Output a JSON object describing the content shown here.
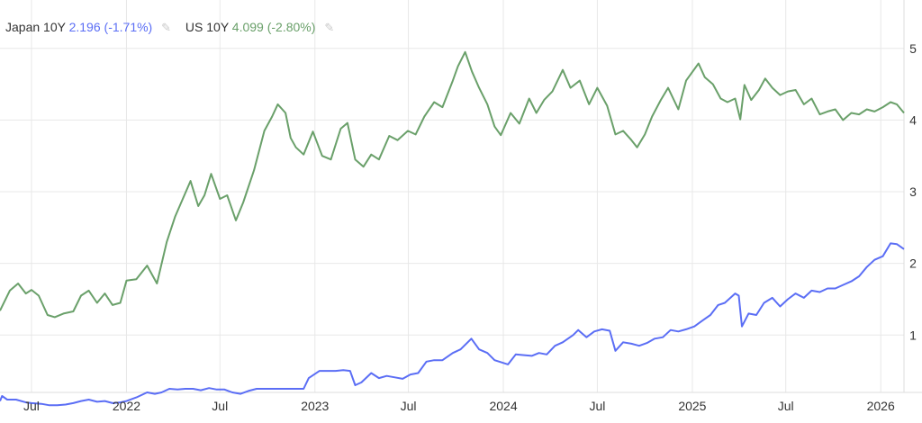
{
  "legend": {
    "items": [
      {
        "name": "Japan 10Y",
        "value": "2.196",
        "change": "(-1.71%)",
        "color": "#5b6ef5"
      },
      {
        "name": "US 10Y",
        "value": "4.099",
        "change": "(-2.80%)",
        "color": "#6aa06a"
      }
    ],
    "edit_icon": "pencil-icon"
  },
  "chart_data": {
    "type": "line",
    "xlabel": "",
    "ylabel": "",
    "ylim": [
      0.2,
      5.5
    ],
    "xlim": [
      "2021-05-01",
      "2026-02-15"
    ],
    "grid": true,
    "legend_position": "top-left",
    "y_ticks": [
      1,
      2,
      3,
      4,
      5
    ],
    "x_ticks": [
      {
        "label": "Jul",
        "x": "2021-07-01"
      },
      {
        "label": "2022",
        "x": "2022-01-01"
      },
      {
        "label": "Jul",
        "x": "2022-07-01"
      },
      {
        "label": "2023",
        "x": "2023-01-01"
      },
      {
        "label": "Jul",
        "x": "2023-07-01"
      },
      {
        "label": "2024",
        "x": "2024-01-01"
      },
      {
        "label": "Jul",
        "x": "2024-07-01"
      },
      {
        "label": "2025",
        "x": "2025-01-01"
      },
      {
        "label": "Jul",
        "x": "2025-07-01"
      },
      {
        "label": "2026",
        "x": "2026-01-01"
      }
    ],
    "series": [
      {
        "name": "US 10Y",
        "color": "#6aa06a",
        "points": [
          [
            "2021-05-01",
            1.34
          ],
          [
            "2021-05-20",
            1.62
          ],
          [
            "2021-06-05",
            1.72
          ],
          [
            "2021-06-20",
            1.58
          ],
          [
            "2021-07-01",
            1.63
          ],
          [
            "2021-07-15",
            1.55
          ],
          [
            "2021-08-01",
            1.28
          ],
          [
            "2021-08-15",
            1.25
          ],
          [
            "2021-09-01",
            1.3
          ],
          [
            "2021-09-20",
            1.33
          ],
          [
            "2021-10-05",
            1.55
          ],
          [
            "2021-10-20",
            1.62
          ],
          [
            "2021-11-05",
            1.45
          ],
          [
            "2021-11-20",
            1.58
          ],
          [
            "2021-12-05",
            1.42
          ],
          [
            "2021-12-20",
            1.45
          ],
          [
            "2022-01-01",
            1.76
          ],
          [
            "2022-01-20",
            1.78
          ],
          [
            "2022-02-10",
            1.97
          ],
          [
            "2022-03-01",
            1.72
          ],
          [
            "2022-03-20",
            2.3
          ],
          [
            "2022-04-05",
            2.65
          ],
          [
            "2022-04-20",
            2.9
          ],
          [
            "2022-05-05",
            3.15
          ],
          [
            "2022-05-20",
            2.8
          ],
          [
            "2022-06-01",
            2.95
          ],
          [
            "2022-06-14",
            3.25
          ],
          [
            "2022-07-01",
            2.9
          ],
          [
            "2022-07-15",
            2.95
          ],
          [
            "2022-08-01",
            2.6
          ],
          [
            "2022-08-15",
            2.85
          ],
          [
            "2022-09-05",
            3.3
          ],
          [
            "2022-09-25",
            3.85
          ],
          [
            "2022-10-10",
            4.05
          ],
          [
            "2022-10-21",
            4.22
          ],
          [
            "2022-11-05",
            4.1
          ],
          [
            "2022-11-15",
            3.75
          ],
          [
            "2022-11-25",
            3.62
          ],
          [
            "2022-12-10",
            3.52
          ],
          [
            "2022-12-28",
            3.84
          ],
          [
            "2023-01-15",
            3.5
          ],
          [
            "2023-02-01",
            3.45
          ],
          [
            "2023-02-20",
            3.88
          ],
          [
            "2023-03-05",
            3.96
          ],
          [
            "2023-03-20",
            3.45
          ],
          [
            "2023-04-05",
            3.35
          ],
          [
            "2023-04-20",
            3.52
          ],
          [
            "2023-05-05",
            3.45
          ],
          [
            "2023-05-25",
            3.78
          ],
          [
            "2023-06-10",
            3.72
          ],
          [
            "2023-06-30",
            3.85
          ],
          [
            "2023-07-15",
            3.8
          ],
          [
            "2023-08-01",
            4.05
          ],
          [
            "2023-08-20",
            4.25
          ],
          [
            "2023-09-05",
            4.18
          ],
          [
            "2023-09-25",
            4.55
          ],
          [
            "2023-10-05",
            4.75
          ],
          [
            "2023-10-19",
            4.95
          ],
          [
            "2023-11-01",
            4.68
          ],
          [
            "2023-11-15",
            4.45
          ],
          [
            "2023-12-01",
            4.22
          ],
          [
            "2023-12-15",
            3.91
          ],
          [
            "2023-12-27",
            3.79
          ],
          [
            "2024-01-15",
            4.1
          ],
          [
            "2024-02-01",
            3.95
          ],
          [
            "2024-02-20",
            4.3
          ],
          [
            "2024-03-05",
            4.1
          ],
          [
            "2024-03-20",
            4.28
          ],
          [
            "2024-04-05",
            4.4
          ],
          [
            "2024-04-25",
            4.7
          ],
          [
            "2024-05-10",
            4.45
          ],
          [
            "2024-05-28",
            4.55
          ],
          [
            "2024-06-15",
            4.22
          ],
          [
            "2024-07-01",
            4.45
          ],
          [
            "2024-07-20",
            4.2
          ],
          [
            "2024-08-05",
            3.8
          ],
          [
            "2024-08-20",
            3.85
          ],
          [
            "2024-09-05",
            3.72
          ],
          [
            "2024-09-16",
            3.62
          ],
          [
            "2024-10-01",
            3.8
          ],
          [
            "2024-10-15",
            4.05
          ],
          [
            "2024-11-01",
            4.28
          ],
          [
            "2024-11-15",
            4.45
          ],
          [
            "2024-12-05",
            4.15
          ],
          [
            "2024-12-20",
            4.55
          ],
          [
            "2025-01-13",
            4.79
          ],
          [
            "2025-01-25",
            4.6
          ],
          [
            "2025-02-10",
            4.5
          ],
          [
            "2025-02-25",
            4.3
          ],
          [
            "2025-03-10",
            4.25
          ],
          [
            "2025-03-25",
            4.3
          ],
          [
            "2025-04-04",
            4.01
          ],
          [
            "2025-04-12",
            4.49
          ],
          [
            "2025-04-25",
            4.28
          ],
          [
            "2025-05-10",
            4.42
          ],
          [
            "2025-05-22",
            4.58
          ],
          [
            "2025-06-05",
            4.45
          ],
          [
            "2025-06-20",
            4.35
          ],
          [
            "2025-07-05",
            4.4
          ],
          [
            "2025-07-20",
            4.42
          ],
          [
            "2025-08-05",
            4.22
          ],
          [
            "2025-08-20",
            4.3
          ],
          [
            "2025-09-05",
            4.08
          ],
          [
            "2025-09-20",
            4.12
          ],
          [
            "2025-10-05",
            4.15
          ],
          [
            "2025-10-20",
            4.0
          ],
          [
            "2025-11-05",
            4.1
          ],
          [
            "2025-11-20",
            4.08
          ],
          [
            "2025-12-05",
            4.15
          ],
          [
            "2025-12-20",
            4.12
          ],
          [
            "2026-01-05",
            4.18
          ],
          [
            "2026-01-20",
            4.25
          ],
          [
            "2026-02-01",
            4.22
          ],
          [
            "2026-02-15",
            4.1
          ]
        ]
      },
      {
        "name": "Japan 10Y",
        "color": "#5b6ef5",
        "points": [
          [
            "2021-05-01",
            0.08
          ],
          [
            "2021-05-05",
            0.15
          ],
          [
            "2021-05-15",
            0.1
          ],
          [
            "2021-06-01",
            0.1
          ],
          [
            "2021-06-20",
            0.06
          ],
          [
            "2021-07-01",
            0.05
          ],
          [
            "2021-07-20",
            0.04
          ],
          [
            "2021-08-05",
            0.02
          ],
          [
            "2021-08-20",
            0.02
          ],
          [
            "2021-09-05",
            0.03
          ],
          [
            "2021-09-20",
            0.05
          ],
          [
            "2021-10-05",
            0.08
          ],
          [
            "2021-10-20",
            0.1
          ],
          [
            "2021-11-05",
            0.07
          ],
          [
            "2021-11-20",
            0.08
          ],
          [
            "2021-12-05",
            0.05
          ],
          [
            "2021-12-20",
            0.06
          ],
          [
            "2022-01-01",
            0.08
          ],
          [
            "2022-01-20",
            0.13
          ],
          [
            "2022-02-10",
            0.2
          ],
          [
            "2022-02-25",
            0.18
          ],
          [
            "2022-03-10",
            0.2
          ],
          [
            "2022-03-25",
            0.25
          ],
          [
            "2022-04-10",
            0.24
          ],
          [
            "2022-04-25",
            0.25
          ],
          [
            "2022-05-10",
            0.25
          ],
          [
            "2022-05-25",
            0.23
          ],
          [
            "2022-06-10",
            0.26
          ],
          [
            "2022-06-25",
            0.24
          ],
          [
            "2022-07-10",
            0.24
          ],
          [
            "2022-07-25",
            0.2
          ],
          [
            "2022-08-10",
            0.18
          ],
          [
            "2022-08-25",
            0.22
          ],
          [
            "2022-09-10",
            0.25
          ],
          [
            "2022-09-25",
            0.25
          ],
          [
            "2022-10-10",
            0.25
          ],
          [
            "2022-10-25",
            0.25
          ],
          [
            "2022-11-10",
            0.25
          ],
          [
            "2022-11-25",
            0.25
          ],
          [
            "2022-12-10",
            0.25
          ],
          [
            "2022-12-20",
            0.4
          ],
          [
            "2023-01-10",
            0.5
          ],
          [
            "2023-01-25",
            0.5
          ],
          [
            "2023-02-10",
            0.5
          ],
          [
            "2023-02-25",
            0.51
          ],
          [
            "2023-03-10",
            0.5
          ],
          [
            "2023-03-20",
            0.3
          ],
          [
            "2023-04-01",
            0.34
          ],
          [
            "2023-04-20",
            0.47
          ],
          [
            "2023-05-05",
            0.4
          ],
          [
            "2023-05-20",
            0.43
          ],
          [
            "2023-06-05",
            0.41
          ],
          [
            "2023-06-20",
            0.39
          ],
          [
            "2023-07-05",
            0.45
          ],
          [
            "2023-07-20",
            0.47
          ],
          [
            "2023-08-05",
            0.63
          ],
          [
            "2023-08-20",
            0.65
          ],
          [
            "2023-09-05",
            0.65
          ],
          [
            "2023-09-25",
            0.75
          ],
          [
            "2023-10-10",
            0.8
          ],
          [
            "2023-10-31",
            0.95
          ],
          [
            "2023-11-15",
            0.8
          ],
          [
            "2023-12-01",
            0.75
          ],
          [
            "2023-12-15",
            0.65
          ],
          [
            "2023-12-28",
            0.62
          ],
          [
            "2024-01-10",
            0.59
          ],
          [
            "2024-01-25",
            0.73
          ],
          [
            "2024-02-10",
            0.72
          ],
          [
            "2024-02-25",
            0.71
          ],
          [
            "2024-03-10",
            0.75
          ],
          [
            "2024-03-25",
            0.73
          ],
          [
            "2024-04-10",
            0.85
          ],
          [
            "2024-04-25",
            0.9
          ],
          [
            "2024-05-15",
            1.0
          ],
          [
            "2024-05-25",
            1.07
          ],
          [
            "2024-06-10",
            0.97
          ],
          [
            "2024-06-25",
            1.05
          ],
          [
            "2024-07-10",
            1.08
          ],
          [
            "2024-07-25",
            1.06
          ],
          [
            "2024-08-05",
            0.78
          ],
          [
            "2024-08-20",
            0.9
          ],
          [
            "2024-09-05",
            0.88
          ],
          [
            "2024-09-20",
            0.85
          ],
          [
            "2024-10-05",
            0.89
          ],
          [
            "2024-10-20",
            0.95
          ],
          [
            "2024-11-05",
            0.97
          ],
          [
            "2024-11-20",
            1.07
          ],
          [
            "2024-12-05",
            1.05
          ],
          [
            "2024-12-20",
            1.08
          ],
          [
            "2025-01-05",
            1.12
          ],
          [
            "2025-01-20",
            1.2
          ],
          [
            "2025-02-05",
            1.28
          ],
          [
            "2025-02-20",
            1.42
          ],
          [
            "2025-03-05",
            1.45
          ],
          [
            "2025-03-25",
            1.58
          ],
          [
            "2025-04-01",
            1.55
          ],
          [
            "2025-04-07",
            1.12
          ],
          [
            "2025-04-20",
            1.3
          ],
          [
            "2025-05-05",
            1.28
          ],
          [
            "2025-05-20",
            1.45
          ],
          [
            "2025-06-05",
            1.52
          ],
          [
            "2025-06-20",
            1.4
          ],
          [
            "2025-07-05",
            1.5
          ],
          [
            "2025-07-20",
            1.58
          ],
          [
            "2025-08-05",
            1.52
          ],
          [
            "2025-08-20",
            1.62
          ],
          [
            "2025-09-05",
            1.6
          ],
          [
            "2025-09-20",
            1.65
          ],
          [
            "2025-10-05",
            1.65
          ],
          [
            "2025-10-20",
            1.7
          ],
          [
            "2025-11-05",
            1.75
          ],
          [
            "2025-11-20",
            1.82
          ],
          [
            "2025-12-05",
            1.95
          ],
          [
            "2025-12-20",
            2.05
          ],
          [
            "2026-01-05",
            2.1
          ],
          [
            "2026-01-20",
            2.28
          ],
          [
            "2026-02-01",
            2.27
          ],
          [
            "2026-02-15",
            2.2
          ]
        ]
      }
    ]
  }
}
